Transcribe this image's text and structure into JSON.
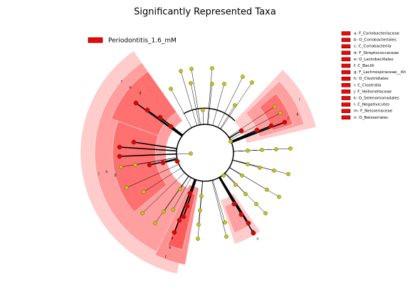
{
  "title": "Significantly Represented Taxa",
  "class_legend": {
    "label": "Periodontitis_1.6_mM",
    "color": "#ff0000"
  },
  "taxa_legend": [
    "a: F_Coriobacteriaceae",
    "b: O_Coriobacteriales",
    "c: C_Coriobacteriia",
    "d: F_Streptococcaceae",
    "e: O_Lactobacillales",
    "f: C_Bacilli",
    "g: F_Lachnospiraceae__Kh",
    "h: O_Clostridiales",
    "i: C_Clostridia",
    "j: F_Veillonellaceae",
    "k: O_Selenomonadales",
    "l: C_Negativicutes",
    "m: F_Neisseriaceae",
    "n: O_Neisseriales"
  ],
  "sector_labels": [
    "f",
    "e",
    "d",
    "i",
    "h",
    "g",
    "c",
    "b",
    "a",
    "l",
    "k",
    "j",
    "n",
    "m"
  ]
}
